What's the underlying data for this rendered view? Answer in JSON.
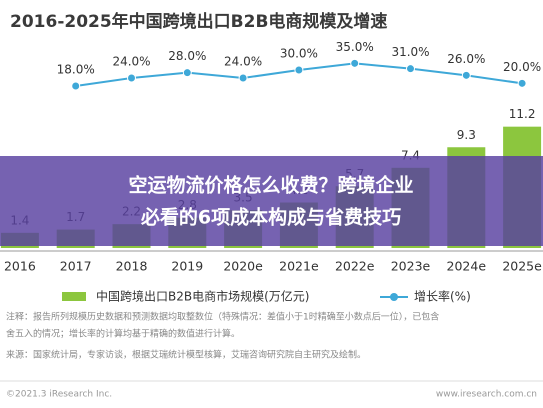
{
  "chart_data": {
    "type": "bar",
    "title": "2016-2025年中国跨境出口B2B电商规模及增速",
    "categories": [
      "2016",
      "2017",
      "2018",
      "2019",
      "2020e",
      "2021e",
      "2022e",
      "2023e",
      "2024e",
      "2025e"
    ],
    "series": [
      {
        "name": "中国跨境出口B2B电商市场规模(万亿元)",
        "color": "#8cc63e",
        "values": [
          1.4,
          1.7,
          2.2,
          2.8,
          3.5,
          4.2,
          5.7,
          7.4,
          9.3,
          11.2
        ]
      },
      {
        "name": "增长率(%)",
        "color": "#3ea8d8",
        "axis": "y2",
        "type": "line",
        "values": [
          null,
          18.0,
          24.0,
          28.0,
          24.0,
          30.0,
          35.0,
          31.0,
          26.0,
          20.0
        ],
        "value_labels": [
          null,
          "18.0%",
          "24.0%",
          "28.0%",
          "24.0%",
          "30.0%",
          "35.0%",
          "31.0%",
          "26.0%",
          "20.0%"
        ]
      }
    ],
    "ylim": [
      0,
      12
    ],
    "y2lim": [
      0,
      75
    ],
    "notes": [
      "注释：报告所列规模历史数据和预测数据均取整数位（特殊情况：差值小于1时精确至小数点后一位），已包含",
      "舍五入的情况；增长率的计算均基于精确的数值进行计算。",
      "来源：国家统计局，专家访谈，根据艾瑞统计模型核算，艾瑞咨询研究院自主研究及绘制。"
    ],
    "footer_left": "©2021.3 iResearch Inc.",
    "footer_right": "www.iresearch.com.cn",
    "overlay_title": [
      "空运物流价格怎么收费？跨境企业",
      "必看的6项成本构成与省费技巧"
    ]
  }
}
